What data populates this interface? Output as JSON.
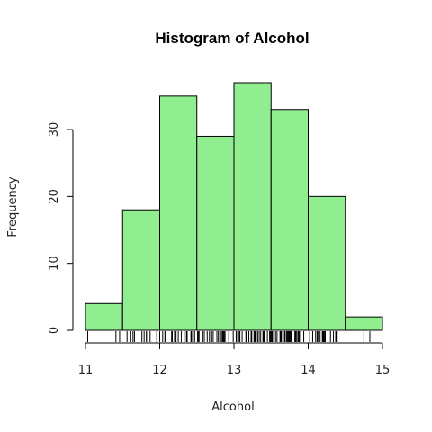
{
  "chart_data": {
    "type": "bar",
    "title": "Histogram of Alcohol",
    "xlabel": "Alcohol",
    "ylabel": "Frequency",
    "bins": [
      {
        "from": 11.0,
        "to": 11.5,
        "count": 4
      },
      {
        "from": 11.5,
        "to": 12.0,
        "count": 18
      },
      {
        "from": 12.0,
        "to": 12.5,
        "count": 35
      },
      {
        "from": 12.5,
        "to": 13.0,
        "count": 29
      },
      {
        "from": 13.0,
        "to": 13.5,
        "count": 37
      },
      {
        "from": 13.5,
        "to": 14.0,
        "count": 33
      },
      {
        "from": 14.0,
        "to": 14.5,
        "count": 20
      },
      {
        "from": 14.5,
        "to": 15.0,
        "count": 2
      }
    ],
    "xlim": [
      11,
      15
    ],
    "ylim": [
      0,
      37
    ],
    "xticks": [
      11,
      12,
      13,
      14,
      15
    ],
    "yticks": [
      0,
      10,
      20,
      30
    ],
    "xtick_labels": [
      "11",
      "12",
      "13",
      "14",
      "15"
    ],
    "ytick_labels": [
      "0",
      "10",
      "20",
      "30"
    ],
    "rug": [
      11.03,
      11.41,
      11.46,
      11.56,
      11.61,
      11.64,
      11.66,
      11.76,
      11.79,
      11.82,
      11.84,
      11.87,
      11.96,
      12.0,
      12.04,
      12.07,
      12.08,
      12.16,
      12.17,
      12.2,
      12.21,
      12.22,
      12.25,
      12.29,
      12.33,
      12.36,
      12.37,
      12.42,
      12.43,
      12.45,
      12.47,
      12.51,
      12.52,
      12.53,
      12.58,
      12.6,
      12.64,
      12.67,
      12.69,
      12.7,
      12.72,
      12.77,
      12.79,
      12.81,
      12.82,
      12.84,
      12.85,
      12.86,
      12.87,
      12.88,
      12.93,
      12.99,
      13.03,
      13.05,
      13.07,
      13.08,
      13.11,
      13.16,
      13.17,
      13.2,
      13.23,
      13.24,
      13.27,
      13.28,
      13.29,
      13.3,
      13.32,
      13.34,
      13.36,
      13.39,
      13.4,
      13.41,
      13.45,
      13.48,
      13.49,
      13.5,
      13.51,
      13.52,
      13.56,
      13.58,
      13.62,
      13.63,
      13.64,
      13.68,
      13.69,
      13.71,
      13.72,
      13.73,
      13.74,
      13.75,
      13.76,
      13.77,
      13.78,
      13.82,
      13.83,
      13.84,
      13.86,
      13.87,
      13.88,
      13.9,
      13.94,
      14.02,
      14.06,
      14.1,
      14.12,
      14.13,
      14.16,
      14.19,
      14.2,
      14.21,
      14.22,
      14.23,
      14.3,
      14.34,
      14.37,
      14.38,
      14.39,
      14.75,
      14.83
    ]
  }
}
